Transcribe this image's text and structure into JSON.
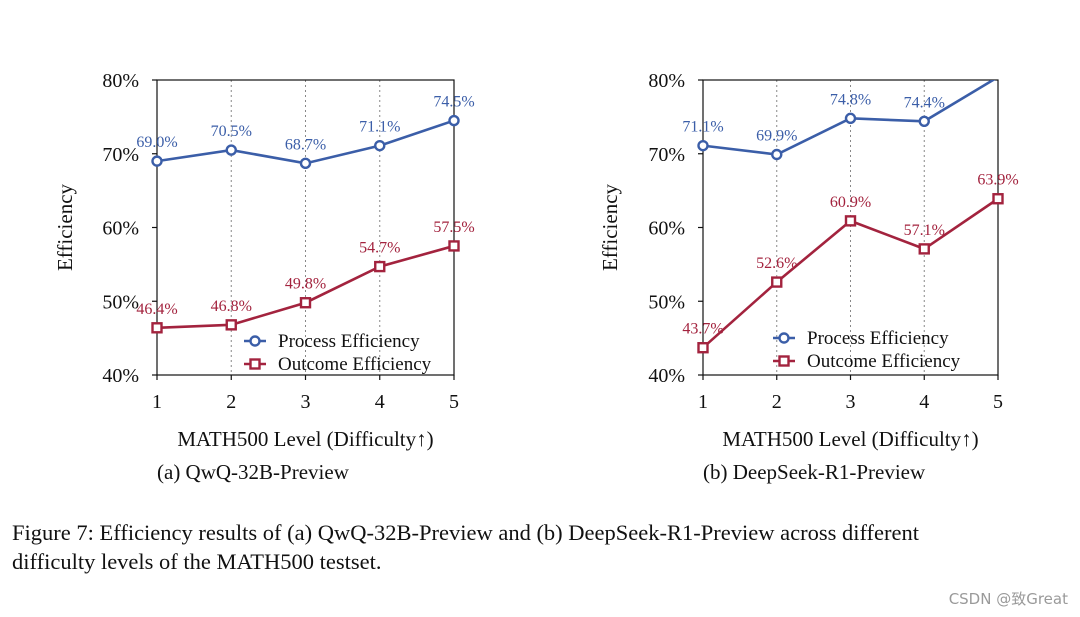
{
  "chart_data": [
    {
      "type": "line",
      "subtitle": "(a) QwQ-32B-Preview",
      "xlabel": "MATH500 Level (Difficulty↑)",
      "ylabel": "Efficiency",
      "categories": [
        "1",
        "2",
        "3",
        "4",
        "5"
      ],
      "x": [
        1,
        2,
        3,
        4,
        5
      ],
      "xlim": [
        1,
        5
      ],
      "ylim": [
        40,
        80
      ],
      "yticks": [
        "40%",
        "50%",
        "60%",
        "70%",
        "80%"
      ],
      "legend_position": "lower-right",
      "series": [
        {
          "name": "Process Efficiency",
          "color": "#3b5ea8",
          "marker": "circle",
          "values": [
            69.0,
            70.5,
            68.7,
            71.1,
            74.5
          ],
          "labels": [
            "69.0%",
            "70.5%",
            "68.7%",
            "71.1%",
            "74.5%"
          ]
        },
        {
          "name": "Outcome Efficiency",
          "color": "#a3233e",
          "marker": "square",
          "values": [
            46.4,
            46.8,
            49.8,
            54.7,
            57.5
          ],
          "labels": [
            "46.4%",
            "46.8%",
            "49.8%",
            "54.7%",
            "57.5%"
          ]
        }
      ]
    },
    {
      "type": "line",
      "subtitle": "(b) DeepSeek-R1-Preview",
      "xlabel": "MATH500 Level (Difficulty↑)",
      "ylabel": "Efficiency",
      "categories": [
        "1",
        "2",
        "3",
        "4",
        "5"
      ],
      "x": [
        1,
        2,
        3,
        4,
        5
      ],
      "xlim": [
        1,
        5
      ],
      "ylim": [
        40,
        80
      ],
      "yticks": [
        "40%",
        "50%",
        "60%",
        "70%",
        "80%"
      ],
      "legend_position": "lower-right",
      "series": [
        {
          "name": "Process Efficiency",
          "color": "#3b5ea8",
          "marker": "circle",
          "values": [
            71.1,
            69.9,
            74.8,
            74.4,
            80.4
          ],
          "labels": [
            "71.1%",
            "69.9%",
            "74.8%",
            "74.4%",
            ""
          ]
        },
        {
          "name": "Outcome Efficiency",
          "color": "#a3233e",
          "marker": "square",
          "values": [
            43.7,
            52.6,
            60.9,
            57.1,
            63.9
          ],
          "labels": [
            "43.7%",
            "52.6%",
            "60.9%",
            "57.1%",
            "63.9%"
          ]
        }
      ]
    }
  ],
  "caption": {
    "line1": "Figure 7: Efficiency results of (a) QwQ-32B-Preview and (b) DeepSeek-R1-Preview across different",
    "line2": "difficulty levels of the MATH500 testset."
  },
  "watermark": "CSDN @致Great"
}
